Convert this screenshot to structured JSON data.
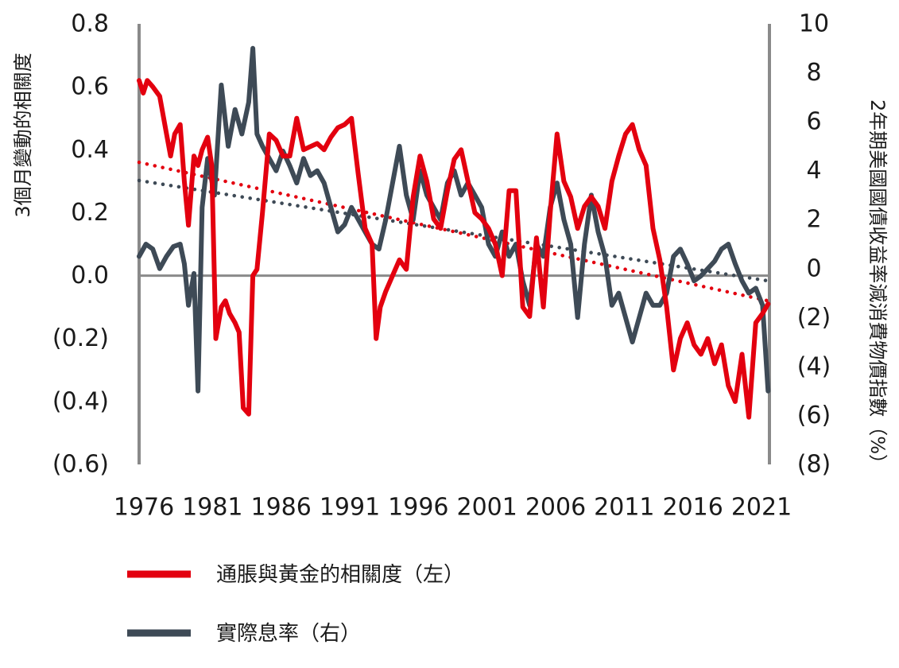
{
  "chart_data": {
    "type": "line",
    "xlabel": "",
    "xlim": [
      1976,
      2022
    ],
    "x_ticks": [
      "1976",
      "1981",
      "1986",
      "1991",
      "1996",
      "2001",
      "2006",
      "2011",
      "2016",
      "2021"
    ],
    "left_axis": {
      "label": "3個月變動的相關度",
      "ylim": [
        -0.6,
        0.8
      ],
      "ticks": [
        "0.8",
        "0.6",
        "0.4",
        "0.2",
        "0.0",
        "(0.2)",
        "(0.4)",
        "(0.6)"
      ]
    },
    "right_axis": {
      "label": "2年期美國國債收益率減消費物價指數（%）",
      "ylim": [
        -8,
        10
      ],
      "ticks": [
        "10",
        "8",
        "6",
        "4",
        "2",
        "0",
        "(2)",
        "(4)",
        "(6)",
        "(8)"
      ]
    },
    "series": [
      {
        "name": "通脹與黃金的相關度（左）",
        "axis": "left",
        "color": "#e3000f",
        "x": [
          1976.0,
          1976.3,
          1976.6,
          1977.0,
          1977.5,
          1978.0,
          1978.3,
          1978.6,
          1979.0,
          1979.3,
          1979.6,
          1980.0,
          1980.3,
          1980.6,
          1981.0,
          1981.3,
          1981.6,
          1982.0,
          1982.3,
          1982.6,
          1983.0,
          1983.3,
          1983.6,
          1984.0,
          1984.3,
          1984.6,
          1985.0,
          1985.5,
          1986.0,
          1986.5,
          1987.0,
          1987.5,
          1988.0,
          1988.5,
          1989.0,
          1989.5,
          1990.0,
          1990.5,
          1991.0,
          1991.5,
          1992.0,
          1992.5,
          1993.0,
          1993.3,
          1993.6,
          1994.0,
          1994.5,
          1995.0,
          1995.5,
          1996.0,
          1996.5,
          1997.0,
          1997.5,
          1998.0,
          1998.5,
          1999.0,
          1999.5,
          2000.0,
          2000.5,
          2001.0,
          2001.5,
          2002.0,
          2002.5,
          2003.0,
          2003.5,
          2004.0,
          2004.5,
          2005.0,
          2005.5,
          2006.0,
          2006.5,
          2007.0,
          2007.5,
          2008.0,
          2008.5,
          2009.0,
          2009.5,
          2010.0,
          2010.5,
          2011.0,
          2011.5,
          2012.0,
          2012.5,
          2013.0,
          2013.5,
          2014.0,
          2014.5,
          2015.0,
          2015.5,
          2016.0,
          2016.5,
          2017.0,
          2017.5,
          2018.0,
          2018.5,
          2019.0,
          2019.5,
          2020.0,
          2020.5,
          2021.0,
          2021.5,
          2021.9
        ],
        "values": [
          0.62,
          0.58,
          0.62,
          0.6,
          0.57,
          0.45,
          0.38,
          0.45,
          0.48,
          0.3,
          0.16,
          0.38,
          0.35,
          0.4,
          0.44,
          0.35,
          -0.2,
          -0.1,
          -0.08,
          -0.12,
          -0.15,
          -0.18,
          -0.42,
          -0.44,
          0.0,
          0.02,
          0.2,
          0.45,
          0.43,
          0.38,
          0.38,
          0.5,
          0.4,
          0.41,
          0.42,
          0.4,
          0.44,
          0.47,
          0.48,
          0.5,
          0.32,
          0.15,
          0.1,
          -0.2,
          -0.1,
          -0.05,
          0.0,
          0.05,
          0.02,
          0.25,
          0.38,
          0.3,
          0.18,
          0.15,
          0.27,
          0.37,
          0.4,
          0.3,
          0.2,
          0.18,
          0.15,
          0.1,
          0.0,
          0.27,
          0.27,
          -0.1,
          -0.13,
          0.12,
          -0.1,
          0.2,
          0.45,
          0.3,
          0.25,
          0.15,
          0.22,
          0.25,
          0.22,
          0.15,
          0.3,
          0.38,
          0.45,
          0.48,
          0.4,
          0.35,
          0.15,
          0.05,
          -0.1,
          -0.3,
          -0.2,
          -0.15,
          -0.22,
          -0.25,
          -0.2,
          -0.28,
          -0.22,
          -0.35,
          -0.4,
          -0.25,
          -0.45,
          -0.15,
          -0.12,
          -0.09
        ]
      },
      {
        "name": "實際息率（右）",
        "axis": "right",
        "color": "#3e4a56",
        "x": [
          1976.0,
          1976.5,
          1977.0,
          1977.5,
          1978.0,
          1978.5,
          1979.0,
          1979.3,
          1979.6,
          1980.0,
          1980.3,
          1980.6,
          1981.0,
          1981.5,
          1982.0,
          1982.5,
          1983.0,
          1983.5,
          1984.0,
          1984.3,
          1984.6,
          1985.0,
          1985.5,
          1986.0,
          1986.5,
          1987.0,
          1987.5,
          1988.0,
          1988.5,
          1989.0,
          1989.5,
          1990.0,
          1990.5,
          1991.0,
          1991.5,
          1992.0,
          1992.5,
          1993.0,
          1993.5,
          1994.0,
          1994.5,
          1995.0,
          1995.5,
          1996.0,
          1996.5,
          1997.0,
          1997.5,
          1998.0,
          1998.5,
          1999.0,
          1999.5,
          2000.0,
          2000.5,
          2001.0,
          2001.5,
          2002.0,
          2002.5,
          2003.0,
          2003.5,
          2004.0,
          2004.5,
          2005.0,
          2005.5,
          2006.0,
          2006.5,
          2007.0,
          2007.5,
          2008.0,
          2008.5,
          2009.0,
          2009.5,
          2010.0,
          2010.5,
          2011.0,
          2011.5,
          2012.0,
          2012.5,
          2013.0,
          2013.5,
          2014.0,
          2014.5,
          2015.0,
          2015.5,
          2016.0,
          2016.5,
          2017.0,
          2017.5,
          2018.0,
          2018.5,
          2019.0,
          2019.5,
          2020.0,
          2020.5,
          2021.0,
          2021.5,
          2021.9
        ],
        "values": [
          0.5,
          1.0,
          0.8,
          0.0,
          0.5,
          0.9,
          1.0,
          0.2,
          -1.5,
          -0.2,
          -5.0,
          2.5,
          4.5,
          3.0,
          7.5,
          5.0,
          6.5,
          5.5,
          6.8,
          9.0,
          5.5,
          5.0,
          4.5,
          4.0,
          4.8,
          4.2,
          3.5,
          4.5,
          3.8,
          4.0,
          3.5,
          2.5,
          1.5,
          1.8,
          2.5,
          2.0,
          1.5,
          1.0,
          0.8,
          2.0,
          3.5,
          5.0,
          3.0,
          2.0,
          4.0,
          3.0,
          2.5,
          2.0,
          3.5,
          4.0,
          3.0,
          3.5,
          3.0,
          2.5,
          1.0,
          0.5,
          1.5,
          0.5,
          1.0,
          -0.5,
          -1.5,
          1.0,
          0.5,
          2.5,
          3.5,
          2.0,
          1.0,
          -2.0,
          1.0,
          3.0,
          1.5,
          0.5,
          -1.5,
          -1.0,
          -2.0,
          -3.0,
          -2.0,
          -1.0,
          -1.5,
          -1.5,
          -1.0,
          0.5,
          0.8,
          0.2,
          -0.5,
          -0.3,
          0.0,
          0.3,
          0.8,
          1.0,
          0.2,
          -0.5,
          -1.0,
          -0.8,
          -1.5,
          -5.0
        ]
      }
    ],
    "trendlines": [
      {
        "series": "通脹與黃金的相關度（左）",
        "axis": "left",
        "style": "dotted",
        "color": "#e3000f",
        "x": [
          1976.0,
          2021.9
        ],
        "values": [
          0.36,
          -0.08
        ]
      },
      {
        "series": "實際息率（右）",
        "axis": "right",
        "style": "dotted",
        "color": "#3e4a56",
        "x": [
          1976.0,
          2021.9
        ],
        "values": [
          3.6,
          -0.5
        ]
      }
    ],
    "legend": {
      "position": "bottom-left",
      "items": [
        {
          "label": "通脹與黃金的相關度（左）",
          "color": "#e3000f"
        },
        {
          "label": "實際息率（右）",
          "color": "#3e4a56"
        }
      ]
    },
    "grid": false
  }
}
